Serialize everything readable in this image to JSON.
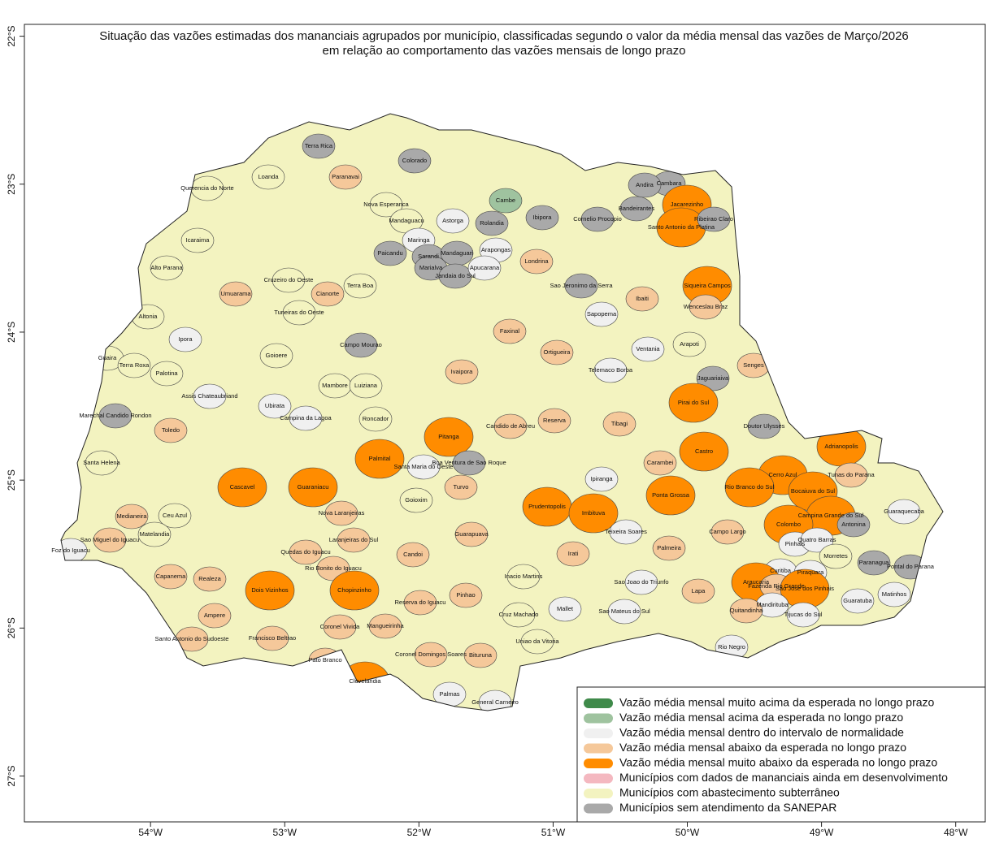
{
  "chart_data": {
    "type": "map",
    "title_lines": [
      "Situação das vazões estimadas dos mananciais agrupados por município, classificadas segundo o valor da média mensal das vazões de Março/2026",
      "em relação ao comportamento das vazões mensais de longo prazo"
    ],
    "xlim": [
      -54.94,
      -47.78
    ],
    "ylim": [
      -21.92,
      -27.31
    ],
    "xticks": [
      {
        "value": -54,
        "label": "54°W"
      },
      {
        "value": -53,
        "label": "53°W"
      },
      {
        "value": -52,
        "label": "52°W"
      },
      {
        "value": -51,
        "label": "51°W"
      },
      {
        "value": -50,
        "label": "50°W"
      },
      {
        "value": -49,
        "label": "49°W"
      },
      {
        "value": -48,
        "label": "48°W"
      }
    ],
    "yticks": [
      {
        "value": -22,
        "label": "22°S"
      },
      {
        "value": -23,
        "label": "23°S"
      },
      {
        "value": -24,
        "label": "24°S"
      },
      {
        "value": -25,
        "label": "25°S"
      },
      {
        "value": -26,
        "label": "26°S"
      },
      {
        "value": -27,
        "label": "27°S"
      }
    ],
    "state_color": "#f3f3c0",
    "legend": [
      {
        "label": "Vazão média mensal muito acima da esperada no longo prazo",
        "color": "#3f8a4a"
      },
      {
        "label": "Vazão média mensal acima da esperada no longo prazo",
        "color": "#9fc39f"
      },
      {
        "label": "Vazão média mensal dentro do intervalo de normalidade",
        "color": "#f0f0f0"
      },
      {
        "label": "Vazão média mensal abaixo da esperada no longo prazo",
        "color": "#f5c89a"
      },
      {
        "label": "Vazão média mensal muito abaixo da esperada no longo prazo",
        "color": "#ff8c00"
      },
      {
        "label": "Municípios com dados de mananciais ainda em desenvolvimento",
        "color": "#f4b8c0"
      },
      {
        "label": "Municípios com abastecimento subterrâneo",
        "color": "#f3f3c0"
      },
      {
        "label": "Municípios sem atendimento da SANEPAR",
        "color": "#a9a9a9"
      }
    ],
    "municipalities": [
      {
        "name": "Terra Rica",
        "color": "#a9a9a9"
      },
      {
        "name": "Loanda",
        "color": "#f3f3c0"
      },
      {
        "name": "Paranavai",
        "color": "#f5c89a"
      },
      {
        "name": "Querencia do Norte",
        "color": "#f3f3c0"
      },
      {
        "name": "Nova Esperanca",
        "color": "#f3f3c0"
      },
      {
        "name": "Colorado",
        "color": "#a9a9a9"
      },
      {
        "name": "Cambe",
        "color": "#9fc39f"
      },
      {
        "name": "Cambara",
        "color": "#a9a9a9"
      },
      {
        "name": "Andira",
        "color": "#a9a9a9"
      },
      {
        "name": "Jacarezinho",
        "color": "#ff8c00"
      },
      {
        "name": "Santo Antonio da Platina",
        "color": "#ff8c00"
      },
      {
        "name": "Ribeirao Claro",
        "color": "#a9a9a9"
      },
      {
        "name": "Bandeirantes",
        "color": "#a9a9a9"
      },
      {
        "name": "Cornelio Procopio",
        "color": "#a9a9a9"
      },
      {
        "name": "Ibipora",
        "color": "#a9a9a9"
      },
      {
        "name": "Rolandia",
        "color": "#a9a9a9"
      },
      {
        "name": "Astorga",
        "color": "#f0f0f0"
      },
      {
        "name": "Mandaguacu",
        "color": "#f3f3c0"
      },
      {
        "name": "Maringa",
        "color": "#f0f0f0"
      },
      {
        "name": "Paicandu",
        "color": "#a9a9a9"
      },
      {
        "name": "Sarandi",
        "color": "#a9a9a9"
      },
      {
        "name": "Mandaguari",
        "color": "#a9a9a9"
      },
      {
        "name": "Arapongas",
        "color": "#f0f0f0"
      },
      {
        "name": "Marialva",
        "color": "#a9a9a9"
      },
      {
        "name": "Jandaia do Sul",
        "color": "#a9a9a9"
      },
      {
        "name": "Apucarana",
        "color": "#f0f0f0"
      },
      {
        "name": "Londrina",
        "color": "#f5c89a"
      },
      {
        "name": "Icaraima",
        "color": "#f3f3c0"
      },
      {
        "name": "Alto Parana",
        "color": "#f3f3c0"
      },
      {
        "name": "Umuarama",
        "color": "#f5c89a"
      },
      {
        "name": "Cruzeiro do Oeste",
        "color": "#f3f3c0"
      },
      {
        "name": "Cianorte",
        "color": "#f5c89a"
      },
      {
        "name": "Terra Boa",
        "color": "#f3f3c0"
      },
      {
        "name": "Tuneiras do Oeste",
        "color": "#f3f3c0"
      },
      {
        "name": "Sao Jeronimo da Serra",
        "color": "#a9a9a9"
      },
      {
        "name": "Sapopema",
        "color": "#f0f0f0"
      },
      {
        "name": "Ibaiti",
        "color": "#f5c89a"
      },
      {
        "name": "Siqueira Campos",
        "color": "#ff8c00"
      },
      {
        "name": "Wenceslau Braz",
        "color": "#f5c89a"
      },
      {
        "name": "Altonia",
        "color": "#f3f3c0"
      },
      {
        "name": "Ipora",
        "color": "#f0f0f0"
      },
      {
        "name": "Campo Mourao",
        "color": "#a9a9a9"
      },
      {
        "name": "Faxinal",
        "color": "#f5c89a"
      },
      {
        "name": "Ortigueira",
        "color": "#f5c89a"
      },
      {
        "name": "Ventania",
        "color": "#f0f0f0"
      },
      {
        "name": "Arapoti",
        "color": "#f3f3c0"
      },
      {
        "name": "Senges",
        "color": "#f5c89a"
      },
      {
        "name": "Guaira",
        "color": "#f3f3c0"
      },
      {
        "name": "Terra Roxa",
        "color": "#f3f3c0"
      },
      {
        "name": "Palotina",
        "color": "#f3f3c0"
      },
      {
        "name": "Goioere",
        "color": "#f3f3c0"
      },
      {
        "name": "Mambore",
        "color": "#f3f3c0"
      },
      {
        "name": "Luiziana",
        "color": "#f3f3c0"
      },
      {
        "name": "Ivaipora",
        "color": "#f5c89a"
      },
      {
        "name": "Telemaco Borba",
        "color": "#f0f0f0"
      },
      {
        "name": "Jaguariaiva",
        "color": "#a9a9a9"
      },
      {
        "name": "Assis Chateaubriand",
        "color": "#f0f0f0"
      },
      {
        "name": "Ubirata",
        "color": "#f0f0f0"
      },
      {
        "name": "Campina da Lagoa",
        "color": "#f0f0f0"
      },
      {
        "name": "Roncador",
        "color": "#f3f3c0"
      },
      {
        "name": "Pirai do Sul",
        "color": "#ff8c00"
      },
      {
        "name": "Marechal Candido Rondon",
        "color": "#a9a9a9"
      },
      {
        "name": "Toledo",
        "color": "#f5c89a"
      },
      {
        "name": "Candido de Abreu",
        "color": "#f5c89a"
      },
      {
        "name": "Reserva",
        "color": "#f5c89a"
      },
      {
        "name": "Tibagi",
        "color": "#f5c89a"
      },
      {
        "name": "Doutor Ulysses",
        "color": "#a9a9a9"
      },
      {
        "name": "Pitanga",
        "color": "#ff8c00"
      },
      {
        "name": "Castro",
        "color": "#ff8c00"
      },
      {
        "name": "Adrianopolis",
        "color": "#ff8c00"
      },
      {
        "name": "Palmital",
        "color": "#ff8c00"
      },
      {
        "name": "Santa Maria do Oeste",
        "color": "#f0f0f0"
      },
      {
        "name": "Boa Ventura de Sao Roque",
        "color": "#a9a9a9"
      },
      {
        "name": "Carambei",
        "color": "#f5c89a"
      },
      {
        "name": "Cerro Azul",
        "color": "#ff8c00"
      },
      {
        "name": "Tunas do Parana",
        "color": "#f5c89a"
      },
      {
        "name": "Santa Helena",
        "color": "#f3f3c0"
      },
      {
        "name": "Cascavel",
        "color": "#ff8c00"
      },
      {
        "name": "Guaraniacu",
        "color": "#ff8c00"
      },
      {
        "name": "Turvo",
        "color": "#f5c89a"
      },
      {
        "name": "Ipiranga",
        "color": "#f0f0f0"
      },
      {
        "name": "Ponta Grossa",
        "color": "#ff8c00"
      },
      {
        "name": "Rio Branco do Sul",
        "color": "#ff8c00"
      },
      {
        "name": "Bocaiuva do Sul",
        "color": "#ff8c00"
      },
      {
        "name": "Guaraquecaba",
        "color": "#f0f0f0"
      },
      {
        "name": "Ceu Azul",
        "color": "#f3f3c0"
      },
      {
        "name": "Medianeira",
        "color": "#f5c89a"
      },
      {
        "name": "Nova Laranjeiras",
        "color": "#f5c89a"
      },
      {
        "name": "Goioxim",
        "color": "#f3f3c0"
      },
      {
        "name": "Prudentopolis",
        "color": "#ff8c00"
      },
      {
        "name": "Imbituva",
        "color": "#ff8c00"
      },
      {
        "name": "Teixeira Soares",
        "color": "#f0f0f0"
      },
      {
        "name": "Campina Grande do Sul",
        "color": "#ff8c00"
      },
      {
        "name": "Antonina",
        "color": "#a9a9a9"
      },
      {
        "name": "Campo Largo",
        "color": "#f5c89a"
      },
      {
        "name": "Colombo",
        "color": "#ff8c00"
      },
      {
        "name": "Sao Miguel do Iguacu",
        "color": "#f5c89a"
      },
      {
        "name": "Matelandia",
        "color": "#f3f3c0"
      },
      {
        "name": "Laranjeiras do Sul",
        "color": "#f5c89a"
      },
      {
        "name": "Guarapuava",
        "color": "#f5c89a"
      },
      {
        "name": "Foz do Iguacu",
        "color": "#f0f0f0"
      },
      {
        "name": "Quedas do Iguacu",
        "color": "#f5c89a"
      },
      {
        "name": "Candoi",
        "color": "#f5c89a"
      },
      {
        "name": "Irati",
        "color": "#f5c89a"
      },
      {
        "name": "Palmeira",
        "color": "#f5c89a"
      },
      {
        "name": "Pinhais",
        "color": "#f0f0f0"
      },
      {
        "name": "Quatro Barras",
        "color": "#f0f0f0"
      },
      {
        "name": "Curitiba",
        "color": "#f0f0f0"
      },
      {
        "name": "Morretes",
        "color": "#f3f3c0"
      },
      {
        "name": "Paranagua",
        "color": "#a9a9a9"
      },
      {
        "name": "Pontal do Parana",
        "color": "#a9a9a9"
      },
      {
        "name": "Rio Bonito do Iguacu",
        "color": "#f5c89a"
      },
      {
        "name": "Piraquara",
        "color": "#f0f0f0"
      },
      {
        "name": "Araucaria",
        "color": "#ff8c00"
      },
      {
        "name": "Fazenda Rio Grande",
        "color": "#f5c89a"
      },
      {
        "name": "Sao Jose dos Pinhais",
        "color": "#ff8c00"
      },
      {
        "name": "Capanema",
        "color": "#f5c89a"
      },
      {
        "name": "Realeza",
        "color": "#f5c89a"
      },
      {
        "name": "Inacio Martins",
        "color": "#f3f3c0"
      },
      {
        "name": "Sao Joao do Triunfo",
        "color": "#f0f0f0"
      },
      {
        "name": "Dois Vizinhos",
        "color": "#ff8c00"
      },
      {
        "name": "Chopinzinho",
        "color": "#ff8c00"
      },
      {
        "name": "Reserva do Iguacu",
        "color": "#f5c89a"
      },
      {
        "name": "Pinhao",
        "color": "#f5c89a"
      },
      {
        "name": "Lapa",
        "color": "#f5c89a"
      },
      {
        "name": "Matinhos",
        "color": "#f0f0f0"
      },
      {
        "name": "Guaratuba",
        "color": "#f0f0f0"
      },
      {
        "name": "Mandirituba",
        "color": "#f0f0f0"
      },
      {
        "name": "Tijucas do Sul",
        "color": "#f0f0f0"
      },
      {
        "name": "Quitandinha",
        "color": "#f5c89a"
      },
      {
        "name": "Mallet",
        "color": "#f0f0f0"
      },
      {
        "name": "Cruz Machado",
        "color": "#f3f3c0"
      },
      {
        "name": "Sao Mateus do Sul",
        "color": "#f0f0f0"
      },
      {
        "name": "Ampere",
        "color": "#f5c89a"
      },
      {
        "name": "Coronel Vivida",
        "color": "#f5c89a"
      },
      {
        "name": "Mangueirinha",
        "color": "#f5c89a"
      },
      {
        "name": "Santo Antonio do Sudoeste",
        "color": "#f5c89a"
      },
      {
        "name": "Francisco Beltrao",
        "color": "#f5c89a"
      },
      {
        "name": "Uniao da Vitoria",
        "color": "#f3f3c0"
      },
      {
        "name": "Rio Negro",
        "color": "#f0f0f0"
      },
      {
        "name": "Coronel Domingos Soares",
        "color": "#f5c89a"
      },
      {
        "name": "Bituruna",
        "color": "#f5c89a"
      },
      {
        "name": "Pato Branco",
        "color": "#f5c89a"
      },
      {
        "name": "Clevelandia",
        "color": "#ff8c00"
      },
      {
        "name": "Palmas",
        "color": "#f0f0f0"
      },
      {
        "name": "General Carneiro",
        "color": "#f0f0f0"
      }
    ]
  }
}
